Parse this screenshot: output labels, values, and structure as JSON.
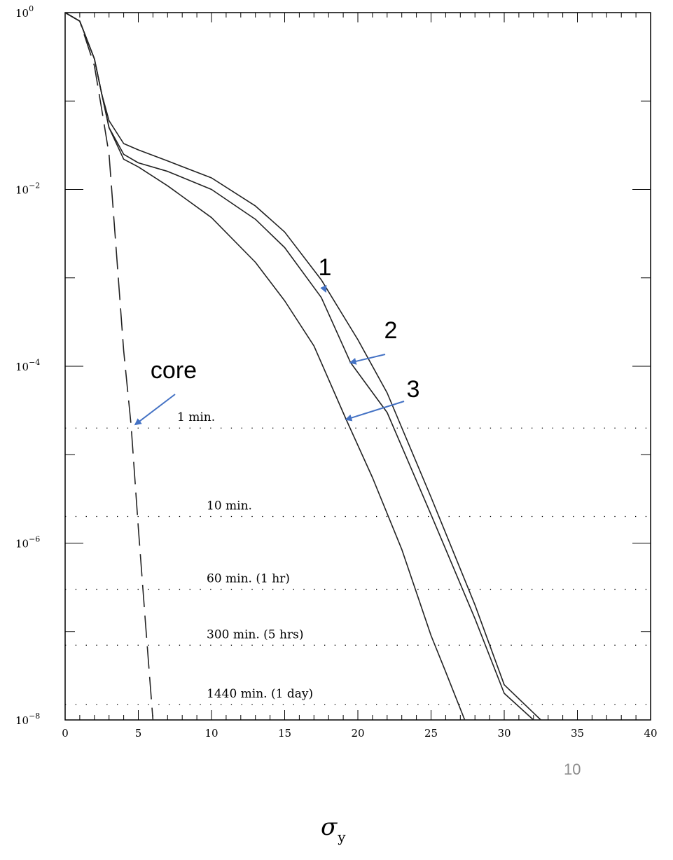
{
  "chart_data": {
    "type": "line",
    "xlabel": "σ",
    "xlabel_sub": "y",
    "xlim": [
      0,
      40
    ],
    "ylim": [
      1e-08,
      1
    ],
    "yscale": "log",
    "x_ticks": [
      "0",
      "5",
      "10",
      "15",
      "20",
      "25",
      "30",
      "35",
      "40"
    ],
    "y_ticks": [
      {
        "value": 1,
        "base": "10",
        "exp": "0"
      },
      {
        "value": 0.01,
        "base": "10",
        "exp": "−2"
      },
      {
        "value": 0.0001,
        "base": "10",
        "exp": "−4"
      },
      {
        "value": 1e-06,
        "base": "10",
        "exp": "−6"
      },
      {
        "value": 1e-08,
        "base": "10",
        "exp": "−8"
      }
    ],
    "series": [
      {
        "name": "1",
        "style": "solid",
        "x": [
          0,
          1,
          2,
          2.5,
          3,
          4,
          5,
          7,
          10,
          13,
          15,
          17.5,
          20,
          22,
          25,
          28,
          30,
          32.5
        ],
        "y": [
          1,
          0.8,
          0.3,
          0.12,
          0.06,
          0.033,
          0.028,
          0.021,
          0.0135,
          0.0065,
          0.0033,
          0.00095,
          0.0002,
          5e-05,
          3.3e-06,
          2e-07,
          2.5e-08,
          1e-08
        ]
      },
      {
        "name": "2",
        "style": "solid",
        "x": [
          0,
          1,
          2,
          2.5,
          3,
          4,
          5,
          7,
          10,
          13,
          15,
          17.5,
          19.5,
          22,
          25,
          28,
          30,
          32
        ],
        "y": [
          1,
          0.8,
          0.3,
          0.12,
          0.05,
          0.025,
          0.02,
          0.016,
          0.01,
          0.0046,
          0.0022,
          0.0006,
          0.00011,
          3e-05,
          2.1e-06,
          1.4e-07,
          2e-08,
          1e-08
        ]
      },
      {
        "name": "3",
        "style": "solid",
        "x": [
          0,
          1,
          2,
          2.5,
          3,
          4,
          5,
          7,
          10,
          13,
          15,
          17,
          19.2,
          21,
          23,
          25,
          26,
          27.3
        ],
        "y": [
          1,
          0.8,
          0.3,
          0.12,
          0.05,
          0.022,
          0.018,
          0.011,
          0.0048,
          0.0015,
          0.00055,
          0.00017,
          2.5e-05,
          5.5e-06,
          8.5e-07,
          9e-08,
          3.5e-08,
          1e-08
        ]
      },
      {
        "name": "core",
        "style": "dashed",
        "x": [
          0,
          1,
          2,
          2.5,
          3,
          3.5,
          4,
          4.5,
          5,
          5.5,
          6
        ],
        "y": [
          1,
          0.8,
          0.25,
          0.08,
          0.025,
          0.002,
          0.00015,
          2.2e-05,
          1.5e-06,
          1.2e-07,
          1e-08
        ]
      }
    ],
    "time_lines": [
      {
        "label": "1 min.",
        "y": 2e-05
      },
      {
        "label": "10 min.",
        "y": 2e-06
      },
      {
        "label": "60 min. (1 hr)",
        "y": 3e-07
      },
      {
        "label": "300 min. (5 hrs)",
        "y": 7e-08
      },
      {
        "label": "1440 min. (1 day)",
        "y": 1.5e-08
      }
    ],
    "annotations": [
      {
        "text": "1",
        "target_x": 17.8,
        "target_y": 0.0007
      },
      {
        "text": "2",
        "target_x": 19.5,
        "target_y": 0.00011
      },
      {
        "text": "3",
        "target_x": 19.2,
        "target_y": 2.5e-05
      },
      {
        "text": "core",
        "target_x": 4.8,
        "target_y": 2.2e-05
      }
    ],
    "annotation_color": "#4472c4",
    "line_color": "#222222"
  },
  "page_number": "10"
}
